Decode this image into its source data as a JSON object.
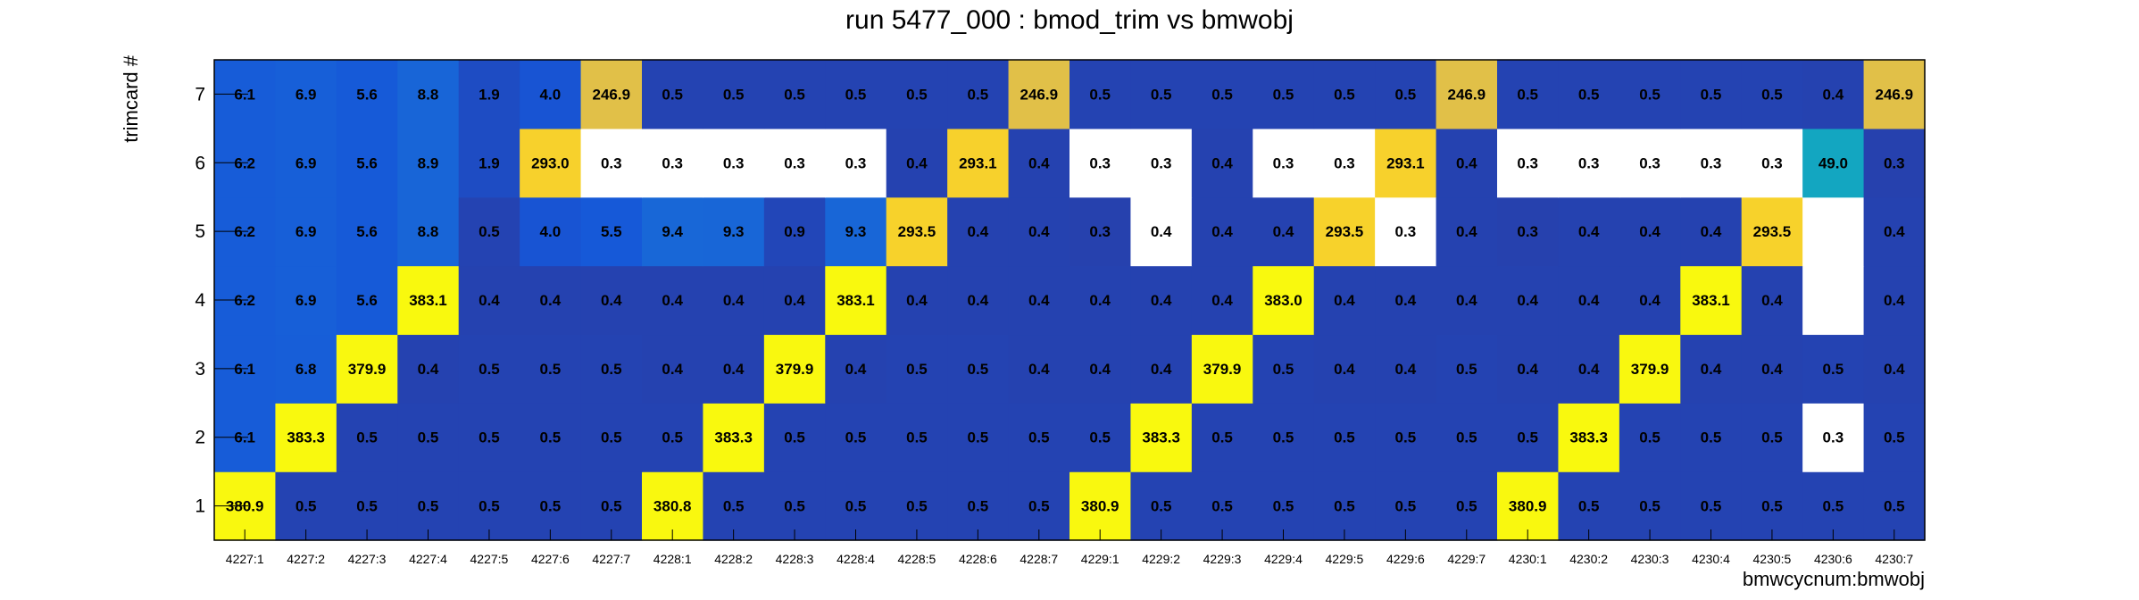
{
  "chart_data": {
    "type": "heatmap",
    "title": "run 5477_000 : bmod_trim vs bmwobj",
    "xlabel": "bmwcycnum:bmwobj",
    "ylabel": "trimcard #",
    "x_categories": [
      "4227:1",
      "4227:2",
      "4227:3",
      "4227:4",
      "4227:5",
      "4227:6",
      "4227:7",
      "4228:1",
      "4228:2",
      "4228:3",
      "4228:4",
      "4228:5",
      "4228:6",
      "4228:7",
      "4229:1",
      "4229:2",
      "4229:3",
      "4229:4",
      "4229:5",
      "4229:6",
      "4229:7",
      "4230:1",
      "4230:2",
      "4230:3",
      "4230:4",
      "4230:5",
      "4230:6",
      "4230:7"
    ],
    "y_categories": [
      "1",
      "2",
      "3",
      "4",
      "5",
      "6",
      "7"
    ],
    "z_range": [
      0,
      383.3
    ],
    "palette": [
      "#2b3aa0",
      "#1656d8",
      "#1b7fd6",
      "#0fa3c8",
      "#23b2a6",
      "#5fbb88",
      "#a4be6e",
      "#d9ba52",
      "#fbd526",
      "#f9f90e"
    ],
    "values": [
      [
        "380.9",
        "0.5",
        "0.5",
        "0.5",
        "0.5",
        "0.5",
        "0.5",
        "380.8",
        "0.5",
        "0.5",
        "0.5",
        "0.5",
        "0.5",
        "0.5",
        "380.9",
        "0.5",
        "0.5",
        "0.5",
        "0.5",
        "0.5",
        "0.5",
        "380.9",
        "0.5",
        "0.5",
        "0.5",
        "0.5",
        "0.5",
        "0.5"
      ],
      [
        "6.1",
        "383.3",
        "0.5",
        "0.5",
        "0.5",
        "0.5",
        "0.5",
        "0.5",
        "383.3",
        "0.5",
        "0.5",
        "0.5",
        "0.5",
        "0.5",
        "0.5",
        "383.3",
        "0.5",
        "0.5",
        "0.5",
        "0.5",
        "0.5",
        "0.5",
        "383.3",
        "0.5",
        "0.5",
        "0.5",
        "0.3",
        "0.5"
      ],
      [
        "6.1",
        "6.8",
        "379.9",
        "0.4",
        "0.5",
        "0.5",
        "0.5",
        "0.4",
        "0.4",
        "379.9",
        "0.4",
        "0.5",
        "0.5",
        "0.4",
        "0.4",
        "0.4",
        "379.9",
        "0.5",
        "0.4",
        "0.4",
        "0.5",
        "0.4",
        "0.4",
        "379.9",
        "0.4",
        "0.4",
        "0.5",
        "0.4"
      ],
      [
        "6.2",
        "6.9",
        "5.6",
        "383.1",
        "0.4",
        "0.4",
        "0.4",
        "0.4",
        "0.4",
        "0.4",
        "383.1",
        "0.4",
        "0.4",
        "0.4",
        "0.4",
        "0.4",
        "0.4",
        "383.0",
        "0.4",
        "0.4",
        "0.4",
        "0.4",
        "0.4",
        "0.4",
        "383.1",
        "0.4",
        "",
        "0.4"
      ],
      [
        "6.2",
        "6.9",
        "5.6",
        "8.8",
        "0.5",
        "4.0",
        "5.5",
        "9.4",
        "9.3",
        "0.9",
        "9.3",
        "293.5",
        "0.4",
        "0.4",
        "0.3",
        "0.4",
        "0.4",
        "0.4",
        "293.5",
        "0.3",
        "0.4",
        "0.3",
        "0.4",
        "0.4",
        "0.4",
        "293.5",
        "",
        "0.4"
      ],
      [
        "6.2",
        "6.9",
        "5.6",
        "8.9",
        "1.9",
        "293.0",
        "0.3",
        "0.3",
        "0.3",
        "0.3",
        "0.3",
        "0.4",
        "293.1",
        "0.4",
        "0.3",
        "0.3",
        "0.4",
        "0.3",
        "0.3",
        "293.1",
        "0.4",
        "0.3",
        "0.3",
        "0.3",
        "0.3",
        "0.3",
        "49.0",
        "0.3"
      ],
      [
        "6.1",
        "6.9",
        "5.6",
        "8.8",
        "1.9",
        "4.0",
        "246.9",
        "0.5",
        "0.5",
        "0.5",
        "0.5",
        "0.5",
        "0.5",
        "246.9",
        "0.5",
        "0.5",
        "0.5",
        "0.5",
        "0.5",
        "0.5",
        "246.9",
        "0.5",
        "0.5",
        "0.5",
        "0.5",
        "0.5",
        "0.4",
        "246.9"
      ]
    ],
    "blank_cells": [
      [
        1,
        26
      ],
      [
        4,
        15
      ],
      [
        4,
        19
      ],
      [
        4,
        26
      ],
      [
        5,
        6
      ],
      [
        5,
        7
      ],
      [
        5,
        8
      ],
      [
        5,
        9
      ],
      [
        5,
        10
      ],
      [
        5,
        14
      ],
      [
        5,
        15
      ],
      [
        5,
        17
      ],
      [
        5,
        18
      ],
      [
        5,
        21
      ],
      [
        5,
        22
      ],
      [
        5,
        23
      ],
      [
        5,
        24
      ],
      [
        5,
        25
      ]
    ]
  }
}
